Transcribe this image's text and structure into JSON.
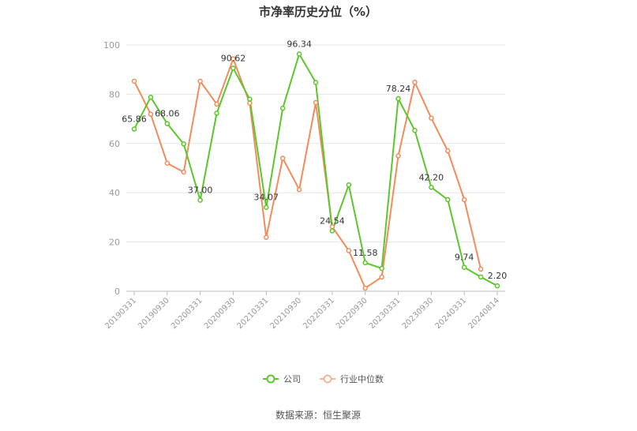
{
  "chart_data": {
    "type": "line",
    "title": "市净率历史分位（%）",
    "ylim": [
      0,
      100
    ],
    "yticks": [
      0,
      20,
      40,
      60,
      80,
      100
    ],
    "x_tick_labels": [
      "20190331",
      "20190930",
      "20200331",
      "20200930",
      "20210331",
      "20210930",
      "20220331",
      "20220930",
      "20230331",
      "20230930",
      "20240331",
      "20240814"
    ],
    "grid": true,
    "legend_position": "bottom",
    "series": [
      {
        "name": "公司",
        "color": "#5cc62c",
        "values": [
          65.86,
          78.8,
          68.06,
          59.8,
          37.0,
          72.3,
          90.62,
          78.0,
          34.07,
          74.3,
          96.34,
          84.8,
          24.54,
          43.2,
          11.58,
          9.3,
          78.24,
          65.3,
          42.2,
          37.2,
          9.74,
          5.8,
          2.2
        ],
        "labels": {
          "0": "65.86",
          "2": "68.06",
          "4": "37.00",
          "6": "90.62",
          "8": "34.07",
          "10": "96.34",
          "12": "24.54",
          "14": "11.58",
          "16": "78.24",
          "18": "42.20",
          "20": "9.74",
          "22": "2.20"
        }
      },
      {
        "name": "行业中位数",
        "color": "#f28c5c",
        "values": [
          85.3,
          71.9,
          52.0,
          48.4,
          85.3,
          76.0,
          94.4,
          76.4,
          21.9,
          54.0,
          41.3,
          76.6,
          26.2,
          16.5,
          1.3,
          5.8,
          55.0,
          84.9,
          70.3,
          57.0,
          37.2,
          9.0,
          null
        ]
      }
    ]
  },
  "source": "数据来源：恒生聚源"
}
